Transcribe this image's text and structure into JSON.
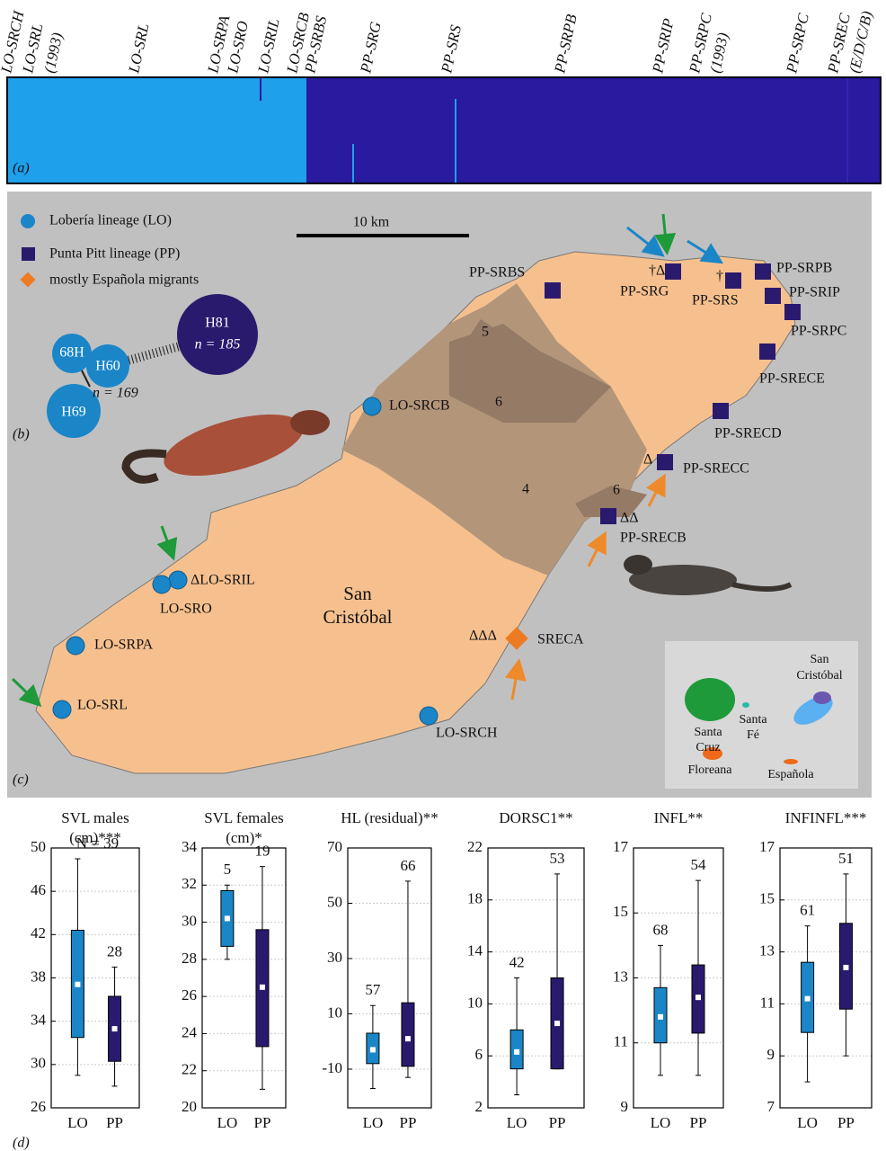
{
  "panel_labels": [
    "(a)",
    "(b)",
    "(c)",
    "(d)"
  ],
  "structure": {
    "labels": [
      "LO-SRCH",
      "LO-SRL",
      "(1993)",
      "LO-SRL",
      "LO-SRPA",
      "LO-SRO",
      "LO-SRIL",
      "LO-SRCB",
      "PP-SRBS",
      "PP-SRG",
      "PP-SRS",
      "PP-SRPB",
      "PP-SRIP",
      "PP-SRPC",
      "(1993)",
      "PP-SRPC",
      "PP-SREC",
      "(E/D/C/B)"
    ]
  },
  "map": {
    "legend": [
      "Lobería lineage (LO)",
      "Punta Pitt lineage (PP)",
      "mostly Española migrants"
    ],
    "scale": "10 km",
    "haplotypes": {
      "nodes": [
        "H81",
        "H60",
        "68H",
        "H69"
      ],
      "counts": [
        "n = 185",
        "n = 169"
      ]
    },
    "zones": [
      "5",
      "6",
      "4",
      "6"
    ],
    "island": [
      "San",
      "Cristóbal"
    ],
    "lo_sites": [
      "LO-SRCB",
      "ΔLO-SRIL",
      "LO-SRO",
      "LO-SRPA",
      "LO-SRL",
      "LO-SRCH"
    ],
    "pp_sites": [
      "PP-SRBS",
      "PP-SRG",
      "PP-SRS",
      "PP-SRPB",
      "PP-SRIP",
      "PP-SRPC",
      "PP-SRECE",
      "PP-SRECD",
      "PP-SRECC",
      "PP-SRECB"
    ],
    "migrant_sites": [
      "SRECA"
    ],
    "annotations": [
      "†Δ",
      "†",
      "Δ",
      "ΔΔ",
      "ΔΔΔ"
    ],
    "inset": {
      "san_cristobal": [
        "San",
        "Cristóbal"
      ],
      "santa_cruz": [
        "Santa",
        "Cruz"
      ],
      "santa_fe": [
        "Santa",
        "Fé"
      ],
      "floreana": "Floreana",
      "espanola": "Española"
    }
  },
  "chart_data": [
    {
      "type": "box",
      "title": [
        "SVL males",
        "(cm)***"
      ],
      "categories": [
        "LO",
        "PP"
      ],
      "ylim": [
        26,
        50
      ],
      "yticks": [
        26,
        30,
        34,
        38,
        42,
        46,
        50
      ],
      "grid": true,
      "boxes": [
        {
          "color": "#1a86c8",
          "min": 29,
          "q1": 32.5,
          "median": 37.4,
          "q3": 42.4,
          "max": 49,
          "n_label": "N = 39"
        },
        {
          "color": "#2a1a6e",
          "min": 28,
          "q1": 30.3,
          "median": 33.3,
          "q3": 36.3,
          "max": 39,
          "n_label": "28"
        }
      ]
    },
    {
      "type": "box",
      "title": [
        "SVL females",
        "(cm)*"
      ],
      "categories": [
        "LO",
        "PP"
      ],
      "ylim": [
        20,
        34
      ],
      "yticks": [
        20,
        22,
        24,
        26,
        28,
        30,
        32,
        34
      ],
      "grid": true,
      "boxes": [
        {
          "color": "#1a86c8",
          "min": 28,
          "q1": 28.7,
          "median": 30.2,
          "q3": 31.7,
          "max": 32,
          "n_label": "5"
        },
        {
          "color": "#2a1a6e",
          "min": 21,
          "q1": 23.3,
          "median": 26.5,
          "q3": 29.6,
          "max": 33,
          "n_label": "19"
        }
      ]
    },
    {
      "type": "box",
      "title": [
        "HL (residual)**"
      ],
      "categories": [
        "LO",
        "PP"
      ],
      "ylim": [
        -24,
        70
      ],
      "yticks": [
        -10,
        10,
        30,
        50,
        70
      ],
      "grid": true,
      "boxes": [
        {
          "color": "#1a86c8",
          "min": -17,
          "q1": -8,
          "median": -3,
          "q3": 3,
          "max": 13,
          "n_label": "57"
        },
        {
          "color": "#2a1a6e",
          "min": -13,
          "q1": -9,
          "median": 1,
          "q3": 14,
          "max": 58,
          "n_label": "66"
        }
      ]
    },
    {
      "type": "box",
      "title": [
        "DORSC1**"
      ],
      "categories": [
        "LO",
        "PP"
      ],
      "ylim": [
        2,
        22
      ],
      "yticks": [
        2,
        6,
        10,
        14,
        18,
        22
      ],
      "grid": true,
      "boxes": [
        {
          "color": "#1a86c8",
          "min": 3,
          "q1": 5,
          "median": 6.3,
          "q3": 8,
          "max": 12,
          "n_label": "42"
        },
        {
          "color": "#2a1a6e",
          "min": 5,
          "q1": 5,
          "median": 8.5,
          "q3": 12,
          "max": 20,
          "n_label": "53"
        }
      ]
    },
    {
      "type": "box",
      "title": [
        "INFL**"
      ],
      "categories": [
        "LO",
        "PP"
      ],
      "ylim": [
        9,
        17
      ],
      "yticks": [
        9,
        11,
        13,
        15,
        17
      ],
      "grid": true,
      "boxes": [
        {
          "color": "#1a86c8",
          "min": 10,
          "q1": 11,
          "median": 11.8,
          "q3": 12.7,
          "max": 14,
          "n_label": "68"
        },
        {
          "color": "#2a1a6e",
          "min": 10,
          "q1": 11.3,
          "median": 12.4,
          "q3": 13.4,
          "max": 16,
          "n_label": "54"
        }
      ]
    },
    {
      "type": "box",
      "title": [
        "INFINFL***"
      ],
      "categories": [
        "LO",
        "PP"
      ],
      "ylim": [
        7,
        17
      ],
      "yticks": [
        7,
        9,
        11,
        13,
        15,
        17
      ],
      "grid": true,
      "boxes": [
        {
          "color": "#1a86c8",
          "min": 8,
          "q1": 9.9,
          "median": 11.2,
          "q3": 12.6,
          "max": 14,
          "n_label": "61"
        },
        {
          "color": "#2a1a6e",
          "min": 9,
          "q1": 10.8,
          "median": 12.4,
          "q3": 14.1,
          "max": 16,
          "n_label": "51"
        }
      ]
    }
  ]
}
